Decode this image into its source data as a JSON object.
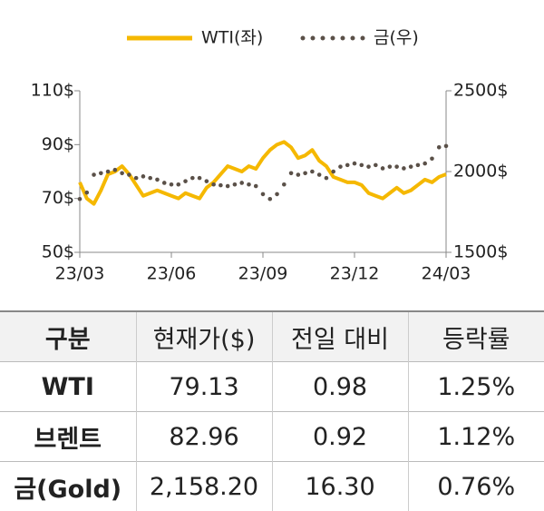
{
  "chart_data": {
    "type": "line",
    "series": [
      {
        "name": "WTI(좌)",
        "color": "#f5b800",
        "axis": "y",
        "style": "solid",
        "values": [
          76,
          70,
          68,
          73,
          79,
          80,
          82,
          79,
          75,
          71,
          72,
          73,
          72,
          71,
          70,
          72,
          71,
          70,
          74,
          76,
          79,
          82,
          81,
          80,
          82,
          81,
          85,
          88,
          90,
          91,
          89,
          85,
          86,
          88,
          84,
          82,
          78,
          77,
          76,
          76,
          75,
          72,
          71,
          70,
          72,
          74,
          72,
          73,
          75,
          77,
          76,
          78,
          79
        ]
      },
      {
        "name": "금(우)",
        "color": "#5a5048",
        "axis": "y2",
        "style": "dotted",
        "values": [
          1830,
          1870,
          1980,
          1990,
          2000,
          2010,
          1990,
          1980,
          1960,
          1970,
          1960,
          1950,
          1930,
          1920,
          1920,
          1940,
          1960,
          1960,
          1940,
          1920,
          1915,
          1910,
          1920,
          1930,
          1920,
          1910,
          1860,
          1830,
          1860,
          1920,
          1990,
          1980,
          1990,
          2000,
          1980,
          1960,
          2000,
          2030,
          2040,
          2050,
          2040,
          2030,
          2040,
          2020,
          2030,
          2030,
          2020,
          2030,
          2040,
          2050,
          2080,
          2150,
          2158
        ]
      }
    ],
    "xlim": [
      0,
      52
    ],
    "xticks": [
      {
        "value": 0,
        "label": "23/03"
      },
      {
        "value": 13,
        "label": "23/06"
      },
      {
        "value": 26,
        "label": "23/09"
      },
      {
        "value": 39,
        "label": "23/12"
      },
      {
        "value": 52,
        "label": "24/03"
      }
    ],
    "ylim": [
      50,
      110
    ],
    "yticks": [
      {
        "value": 50,
        "label": "50$"
      },
      {
        "value": 70,
        "label": "70$"
      },
      {
        "value": 90,
        "label": "90$"
      },
      {
        "value": 110,
        "label": "110$"
      }
    ],
    "y2lim": [
      1500,
      2500
    ],
    "y2ticks": [
      {
        "value": 1500,
        "label": "1500$"
      },
      {
        "value": 2000,
        "label": "2000$"
      },
      {
        "value": 2500,
        "label": "2500$"
      }
    ],
    "legend": "top"
  },
  "table": {
    "header": [
      "구분",
      "현재가($)",
      "전일 대비",
      "등락률"
    ],
    "rows": [
      [
        "WTI",
        "79.13",
        "0.98",
        "1.25%"
      ],
      [
        "브렌트",
        "82.96",
        "0.92",
        "1.12%"
      ],
      [
        "금(Gold)",
        "2,158.20",
        "16.30",
        "0.76%"
      ]
    ]
  }
}
